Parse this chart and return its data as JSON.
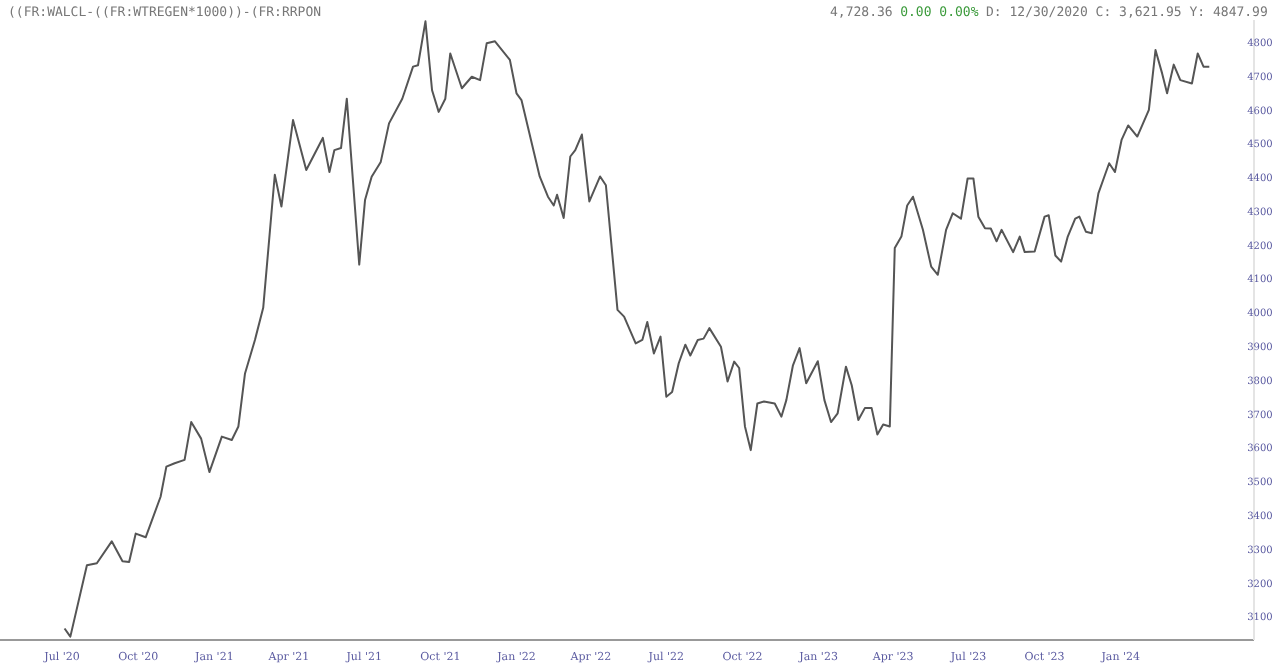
{
  "chart_data": {
    "type": "line",
    "title": "((FR:WALCL-((FR:WTREGEN*1000))-(FR:RRPON",
    "annotations": [
      "4,728.36",
      "0.00 0.00%",
      "D: 12/30/2020 C: 3,621.95 Y: 4847.99"
    ],
    "xlim": [
      "2020-04-17",
      "2024-06-10"
    ],
    "xticks": [
      {
        "value": "2020-07-01",
        "label": "Jul '20"
      },
      {
        "value": "2020-10-01",
        "label": "Oct '20"
      },
      {
        "value": "2021-01-01",
        "label": "Jan '21"
      },
      {
        "value": "2021-04-01",
        "label": "Apr '21"
      },
      {
        "value": "2021-07-01",
        "label": "Jul '21"
      },
      {
        "value": "2021-10-01",
        "label": "Oct '21"
      },
      {
        "value": "2022-01-01",
        "label": "Jan '22"
      },
      {
        "value": "2022-04-01",
        "label": "Apr '22"
      },
      {
        "value": "2022-07-01",
        "label": "Jul '22"
      },
      {
        "value": "2022-10-01",
        "label": "Oct '22"
      },
      {
        "value": "2023-01-01",
        "label": "Jan '23"
      },
      {
        "value": "2023-04-01",
        "label": "Apr '23"
      },
      {
        "value": "2023-07-01",
        "label": "Jul '23"
      },
      {
        "value": "2023-10-01",
        "label": "Oct '23"
      },
      {
        "value": "2024-01-01",
        "label": "Jan '24"
      }
    ],
    "ylim": [
      3030,
      4865
    ],
    "yticks": [
      3100,
      3200,
      3300,
      3400,
      3500,
      3600,
      3700,
      3800,
      3900,
      4000,
      4100,
      4200,
      4300,
      4400,
      4500,
      4600,
      4700,
      4800
    ],
    "grid": false,
    "marker": "none",
    "line_style": "solid",
    "series": [
      {
        "color": "#555555",
        "x": [
          "2020-07-04",
          "2020-07-11",
          "2020-07-31",
          "2020-08-12",
          "2020-08-30",
          "2020-09-12",
          "2020-09-20",
          "2020-09-28",
          "2020-10-10",
          "2020-10-28",
          "2020-11-04",
          "2020-11-14",
          "2020-11-26",
          "2020-12-04",
          "2020-12-16",
          "2020-12-26",
          "2021-01-10",
          "2021-01-22",
          "2021-01-30",
          "2021-02-07",
          "2021-02-19",
          "2021-03-01",
          "2021-03-15",
          "2021-03-23",
          "2021-04-06",
          "2021-04-22",
          "2021-05-12",
          "2021-05-20",
          "2021-05-26",
          "2021-06-03",
          "2021-06-10",
          "2021-06-25",
          "2021-07-02",
          "2021-07-10",
          "2021-07-21",
          "2021-07-31",
          "2021-08-16",
          "2021-08-29",
          "2021-09-04",
          "2021-09-13",
          "2021-09-21",
          "2021-09-29",
          "2021-10-07",
          "2021-10-13",
          "2021-10-27",
          "2021-11-08",
          "2021-11-18",
          "2021-11-26",
          "2021-12-06",
          "2021-12-24",
          "2022-01-01",
          "2022-01-07",
          "2022-01-29",
          "2022-02-08",
          "2022-02-15",
          "2022-02-19",
          "2022-02-27",
          "2022-03-07",
          "2022-03-13",
          "2022-03-21",
          "2022-03-30",
          "2022-04-12",
          "2022-04-19",
          "2022-05-03",
          "2022-05-11",
          "2022-05-25",
          "2022-06-02",
          "2022-06-08",
          "2022-06-16",
          "2022-06-24",
          "2022-07-01",
          "2022-07-08",
          "2022-07-16",
          "2022-07-24",
          "2022-07-30",
          "2022-08-08",
          "2022-08-15",
          "2022-08-22",
          "2022-09-05",
          "2022-09-13",
          "2022-09-21",
          "2022-09-27",
          "2022-10-04",
          "2022-10-11",
          "2022-10-19",
          "2022-10-27",
          "2022-11-09",
          "2022-11-17",
          "2022-11-23",
          "2022-12-01",
          "2022-12-09",
          "2022-12-17",
          "2022-12-31",
          "2023-01-08",
          "2023-01-16",
          "2023-01-24",
          "2023-02-03",
          "2023-02-10",
          "2023-02-18",
          "2023-02-26",
          "2023-03-06",
          "2023-03-13",
          "2023-03-20",
          "2023-03-28",
          "2023-04-03",
          "2023-04-11",
          "2023-04-18",
          "2023-04-25",
          "2023-05-07",
          "2023-05-17",
          "2023-05-25",
          "2023-06-04",
          "2023-06-12",
          "2023-06-22",
          "2023-06-30",
          "2023-07-07",
          "2023-07-13",
          "2023-07-21",
          "2023-07-28",
          "2023-08-04",
          "2023-08-10",
          "2023-08-24",
          "2023-09-01",
          "2023-09-07",
          "2023-09-19",
          "2023-10-01",
          "2023-10-06",
          "2023-10-14",
          "2023-10-21",
          "2023-10-29",
          "2023-11-07",
          "2023-11-12",
          "2023-11-20",
          "2023-11-27",
          "2023-12-05",
          "2023-12-13",
          "2023-12-18",
          "2023-12-25",
          "2024-01-02",
          "2024-01-10",
          "2024-01-21",
          "2024-02-04",
          "2024-02-12",
          "2024-02-20",
          "2024-02-26",
          "2024-03-05",
          "2024-03-13",
          "2024-03-27",
          "2024-04-03",
          "2024-04-10",
          "2024-04-17"
        ],
        "values": [
          3064,
          3040,
          3251,
          3257,
          3322,
          3263,
          3261,
          3345,
          3334,
          3454,
          3543,
          3553,
          3563,
          3675,
          3626,
          3527,
          3632,
          3622,
          3662,
          3819,
          3918,
          4013,
          4407,
          4313,
          4569,
          4421,
          4516,
          4415,
          4480,
          4486,
          4632,
          4141,
          4332,
          4401,
          4445,
          4559,
          4632,
          4727,
          4731,
          4861,
          4657,
          4593,
          4632,
          4766,
          4663,
          4697,
          4687,
          4796,
          4802,
          4747,
          4648,
          4628,
          4402,
          4342,
          4316,
          4348,
          4279,
          4461,
          4480,
          4526,
          4328,
          4402,
          4376,
          4007,
          3987,
          3908,
          3918,
          3971,
          3878,
          3928,
          3750,
          3764,
          3849,
          3904,
          3872,
          3918,
          3922,
          3953,
          3898,
          3795,
          3854,
          3835,
          3662,
          3592,
          3730,
          3736,
          3730,
          3691,
          3740,
          3843,
          3894,
          3790,
          3855,
          3740,
          3675,
          3701,
          3839,
          3784,
          3681,
          3717,
          3717,
          3638,
          3668,
          3662,
          4190,
          4224,
          4316,
          4342,
          4244,
          4135,
          4111,
          4244,
          4293,
          4277,
          4396,
          4396,
          4283,
          4249,
          4248,
          4210,
          4244,
          4178,
          4224,
          4178,
          4180,
          4283,
          4287,
          4168,
          4150,
          4224,
          4277,
          4283,
          4238,
          4234,
          4352,
          4407,
          4441,
          4415,
          4510,
          4553,
          4520,
          4599,
          4776,
          4707,
          4648,
          4733,
          4687,
          4677,
          4766,
          4727,
          4727
        ]
      }
    ]
  }
}
